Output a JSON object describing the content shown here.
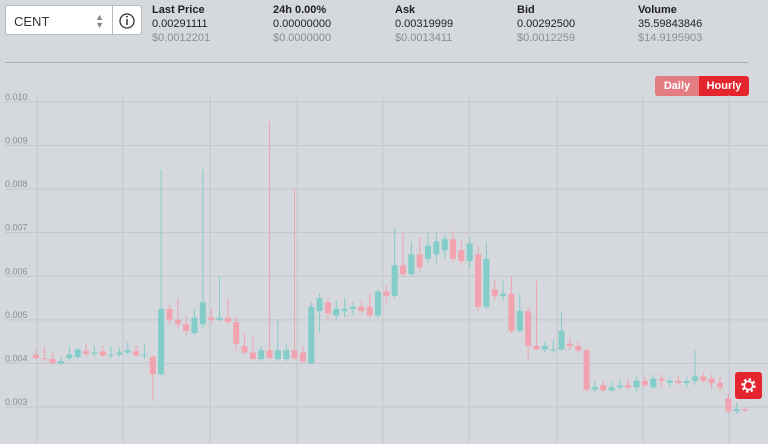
{
  "header": {
    "selector": "CENT",
    "stats": [
      {
        "label": "Last Price",
        "value": "0.00291111",
        "usd": "$0.0012201"
      },
      {
        "label": "24h 0.00%",
        "value": "0.00000000",
        "usd": "$0.0000000"
      },
      {
        "label": "Ask",
        "value": "0.00319999",
        "usd": "$0.0013411"
      },
      {
        "label": "Bid",
        "value": "0.00292500",
        "usd": "$0.0012259"
      },
      {
        "label": "Volume",
        "value": "35.59843846",
        "usd": "$14.9195903"
      }
    ]
  },
  "buttons": [
    "Daily",
    "Hourly"
  ],
  "chart_data": {
    "type": "candlestick",
    "up_color": "#82cdc9",
    "down_color": "#f2a3b0",
    "ylim": [
      0.00215,
      0.01016
    ],
    "yticks": [
      {
        "value": 0.01,
        "label": "0.010"
      },
      0.009,
      0.008,
      0.007,
      0.006,
      0.005,
      0.004,
      0.003
    ],
    "grid": true,
    "open": [
      0.0042,
      0.00412,
      0.0041,
      0.004,
      0.00412,
      0.00415,
      0.00428,
      0.00422,
      0.00428,
      0.00418,
      0.0042,
      0.00425,
      0.00428,
      0.00418,
      0.00415,
      0.00375,
      0.00525,
      0.005,
      0.0049,
      0.0047,
      0.0049,
      0.00505,
      0.005,
      0.00505,
      0.00495,
      0.0044,
      0.00425,
      0.0041,
      0.0043,
      0.0041,
      0.0041,
      0.0043,
      0.00425,
      0.004,
      0.0052,
      0.0054,
      0.0051,
      0.0052,
      0.00525,
      0.0053,
      0.0053,
      0.0051,
      0.00565,
      0.00555,
      0.00625,
      0.00605,
      0.0065,
      0.0064,
      0.0065,
      0.0066,
      0.00685,
      0.0066,
      0.00635,
      0.0065,
      0.0053,
      0.0057,
      0.00555,
      0.0056,
      0.00475,
      0.0052,
      0.0044,
      0.00432,
      0.0043,
      0.00432,
      0.00445,
      0.0044,
      0.0043,
      0.0034,
      0.0035,
      0.00338,
      0.00345,
      0.0035,
      0.00345,
      0.0036,
      0.00345,
      0.00365,
      0.00355,
      0.0036,
      0.00355,
      0.0036,
      0.0037,
      0.00365,
      0.00355,
      0.0032,
      0.0029,
      0.00295
    ],
    "high": [
      0.0043,
      0.0044,
      0.00425,
      0.00415,
      0.0044,
      0.00435,
      0.00445,
      0.0044,
      0.0044,
      0.00438,
      0.00435,
      0.0045,
      0.0044,
      0.00445,
      0.00418,
      0.00845,
      0.00535,
      0.0055,
      0.0051,
      0.00525,
      0.00845,
      0.00525,
      0.006,
      0.0055,
      0.00505,
      0.0047,
      0.0046,
      0.0044,
      0.00955,
      0.005,
      0.00445,
      0.008,
      0.0044,
      0.0054,
      0.0056,
      0.0055,
      0.00545,
      0.0055,
      0.0054,
      0.00545,
      0.0056,
      0.0057,
      0.0058,
      0.0071,
      0.007,
      0.0068,
      0.0069,
      0.007,
      0.007,
      0.00695,
      0.00705,
      0.0068,
      0.0069,
      0.0067,
      0.0068,
      0.0059,
      0.0059,
      0.006,
      0.0056,
      0.0053,
      0.0059,
      0.0045,
      0.00455,
      0.0052,
      0.0046,
      0.0045,
      0.00435,
      0.0036,
      0.0036,
      0.0036,
      0.00365,
      0.00365,
      0.0037,
      0.0037,
      0.00375,
      0.00375,
      0.0037,
      0.0037,
      0.0037,
      0.0043,
      0.0038,
      0.00375,
      0.0037,
      0.0033,
      0.0031,
      0.003
    ],
    "low": [
      0.0041,
      0.00405,
      0.00398,
      0.00395,
      0.00405,
      0.0041,
      0.00415,
      0.00418,
      0.00415,
      0.00412,
      0.00415,
      0.0042,
      0.00415,
      0.0041,
      0.00315,
      0.00372,
      0.0049,
      0.0048,
      0.00465,
      0.00465,
      0.0048,
      0.0049,
      0.00495,
      0.0049,
      0.0043,
      0.0042,
      0.0041,
      0.00405,
      0.0041,
      0.00405,
      0.00405,
      0.00408,
      0.004,
      0.00398,
      0.0047,
      0.005,
      0.005,
      0.00505,
      0.0051,
      0.00515,
      0.00505,
      0.00505,
      0.0054,
      0.0055,
      0.006,
      0.006,
      0.0061,
      0.0063,
      0.0063,
      0.0064,
      0.0063,
      0.00625,
      0.0062,
      0.0052,
      0.00525,
      0.00545,
      0.00545,
      0.0047,
      0.0047,
      0.0041,
      0.0043,
      0.00425,
      0.00425,
      0.0043,
      0.0043,
      0.00425,
      0.00335,
      0.00335,
      0.00335,
      0.00335,
      0.0034,
      0.0034,
      0.00335,
      0.00345,
      0.0034,
      0.00345,
      0.00345,
      0.0035,
      0.00345,
      0.0035,
      0.00355,
      0.0034,
      0.00335,
      0.00285,
      0.00285,
      0.0029
    ],
    "close": [
      0.00412,
      0.0041,
      0.004,
      0.00405,
      0.0042,
      0.00432,
      0.00422,
      0.00425,
      0.00418,
      0.0042,
      0.00425,
      0.0043,
      0.00418,
      0.0042,
      0.00375,
      0.00525,
      0.005,
      0.0049,
      0.00475,
      0.00505,
      0.0054,
      0.005,
      0.00505,
      0.00495,
      0.00445,
      0.00425,
      0.0041,
      0.0043,
      0.00412,
      0.0043,
      0.0043,
      0.00412,
      0.00405,
      0.0053,
      0.0055,
      0.00515,
      0.00525,
      0.00525,
      0.0053,
      0.0052,
      0.0051,
      0.00565,
      0.00555,
      0.00625,
      0.00605,
      0.0065,
      0.0062,
      0.0067,
      0.0068,
      0.00685,
      0.0064,
      0.00635,
      0.00675,
      0.0053,
      0.0064,
      0.00555,
      0.0056,
      0.00475,
      0.0052,
      0.0044,
      0.00432,
      0.0044,
      0.00432,
      0.00475,
      0.0044,
      0.0043,
      0.0034,
      0.00345,
      0.00338,
      0.00345,
      0.0035,
      0.00345,
      0.0036,
      0.0035,
      0.00365,
      0.0036,
      0.0036,
      0.00355,
      0.0036,
      0.0037,
      0.0036,
      0.00355,
      0.00345,
      0.0029,
      0.00295,
      0.00292
    ]
  }
}
